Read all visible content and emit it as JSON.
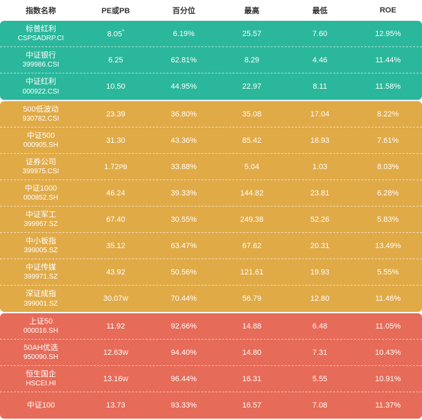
{
  "columns": [
    "指数名称",
    "PE或PB",
    "百分位",
    "最高",
    "最低",
    "ROE"
  ],
  "sections": [
    {
      "bg_color": "#2bb79b",
      "rows": [
        {
          "name1": "标普红利",
          "name2": "CSPSADRP.CI",
          "pe": "8.05",
          "pe_sup": "*",
          "pct": "6.19%",
          "high": "25.57",
          "low": "7.60",
          "roe": "12.95%"
        },
        {
          "name1": "中证银行",
          "name2": "399986.CSI",
          "pe": "6.25",
          "pct": "62.81%",
          "high": "8.29",
          "low": "4.46",
          "roe": "11.44%"
        },
        {
          "name1": "中证红利",
          "name2": "000922.CSI",
          "pe": "10.50",
          "pct": "44.95%",
          "high": "22.97",
          "low": "8.11",
          "roe": "11.58%"
        }
      ]
    },
    {
      "bg_color": "#e0aa47",
      "rows": [
        {
          "name1": "500低波动",
          "name2": "930782.CSI",
          "pe": "23.39",
          "pct": "36.80%",
          "high": "35.08",
          "low": "17.04",
          "roe": "8.22%"
        },
        {
          "name1": "中证500",
          "name2": "000905.SH",
          "pe": "31.30",
          "pct": "43.36%",
          "high": "85.42",
          "low": "18.93",
          "roe": "7.61%"
        },
        {
          "name1": "证券公司",
          "name2": "399975.CSI",
          "pe": "1.72",
          "pe_sub": "PB",
          "pct": "33.88%",
          "high": "5.04",
          "low": "1.03",
          "roe": "8.03%"
        },
        {
          "name1": "中证1000",
          "name2": "000852.SH",
          "pe": "46.24",
          "pct": "39.33%",
          "high": "144.82",
          "low": "23.81",
          "roe": "6.28%"
        },
        {
          "name1": "中证军工",
          "name2": "399967.SZ",
          "pe": "67.40",
          "pct": "30.55%",
          "high": "249.38",
          "low": "52.26",
          "roe": "5.83%"
        },
        {
          "name1": "中小板指",
          "name2": "399005.SZ",
          "pe": "35.12",
          "pct": "63.47%",
          "high": "67.62",
          "low": "20.31",
          "roe": "13.49%"
        },
        {
          "name1": "中证传媒",
          "name2": "399971.SZ",
          "pe": "43.92",
          "pct": "50.56%",
          "high": "121.61",
          "low": "19.93",
          "roe": "5.55%"
        },
        {
          "name1": "深证成指",
          "name2": "399001.SZ",
          "pe": "30.07",
          "pe_sub": "W",
          "pct": "70.44%",
          "high": "56.79",
          "low": "12.80",
          "roe": "11.46%"
        }
      ]
    },
    {
      "bg_color": "#e66b58",
      "rows": [
        {
          "name1": "上证50",
          "name2": "000016.SH",
          "pe": "11.92",
          "pct": "92.66%",
          "high": "14.88",
          "low": "6.48",
          "roe": "11.05%"
        },
        {
          "name1": "50AH优选",
          "name2": "950090.SH",
          "pe": "12.63",
          "pe_sub": "W",
          "pct": "94.40%",
          "high": "14.80",
          "low": "7.31",
          "roe": "10.43%"
        },
        {
          "name1": "恒生国企",
          "name2": "HSCEI.HI",
          "pe": "13.16",
          "pe_sub": "W",
          "pct": "96.44%",
          "high": "16.31",
          "low": "5.55",
          "roe": "10.91%"
        },
        {
          "name1": "中证100",
          "name2": "",
          "pe": "13.73",
          "pct": "93.33%",
          "high": "16.57",
          "low": "7.08",
          "roe": "11.37%"
        }
      ]
    }
  ]
}
